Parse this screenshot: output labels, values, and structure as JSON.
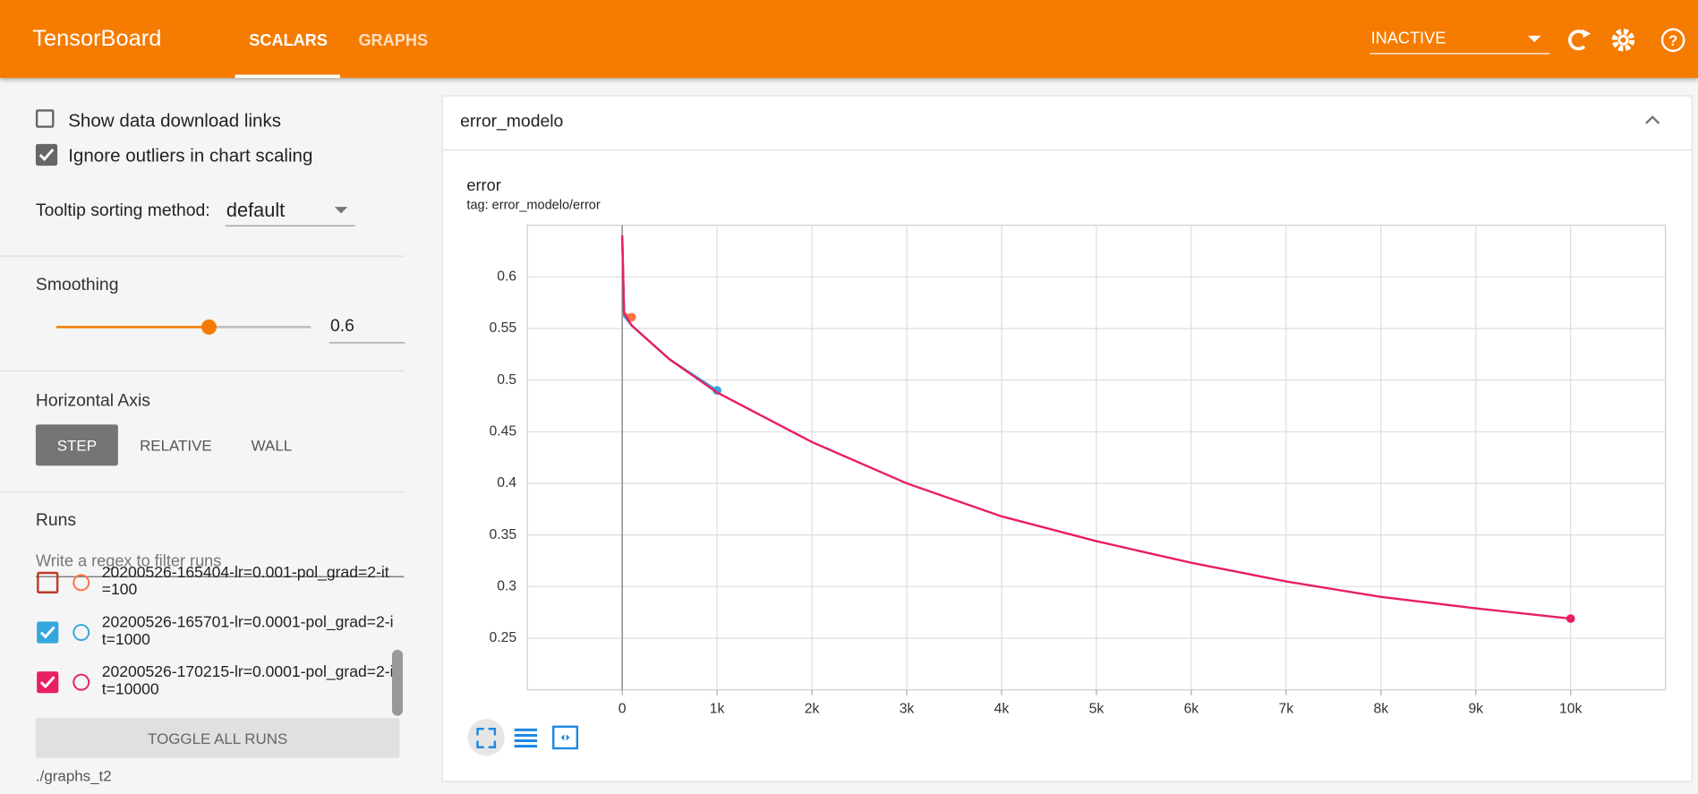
{
  "header": {
    "title": "TensorBoard",
    "tabs": [
      "SCALARS",
      "GRAPHS"
    ],
    "status": "INACTIVE"
  },
  "sidebar": {
    "show_download": "Show data download links",
    "ignore_outliers": "Ignore outliers in chart scaling",
    "tooltip_label": "Tooltip sorting method:",
    "tooltip_value": "default",
    "smoothing_label": "Smoothing",
    "smoothing": 0.6,
    "axis_label": "Horizontal Axis",
    "axis_options": [
      "STEP",
      "RELATIVE",
      "WALL"
    ],
    "runs_label": "Runs",
    "filter_placeholder": "Write a regex to filter runs",
    "toggle": "TOGGLE ALL RUNS",
    "logdir": "./graphs_t2"
  },
  "card": {
    "title": "error_modelo"
  },
  "chart_data": {
    "type": "line",
    "title": "error",
    "subtitle": "tag: error_modelo/error",
    "xlim": [
      -1000,
      11000
    ],
    "ylim": [
      0.2,
      0.65
    ],
    "xticks": [
      0,
      {
        "value": 1000,
        "label": "1k"
      },
      {
        "value": 2000,
        "label": "2k"
      },
      {
        "value": 3000,
        "label": "3k"
      },
      {
        "value": 4000,
        "label": "4k"
      },
      {
        "value": 5000,
        "label": "5k"
      },
      {
        "value": 6000,
        "label": "6k"
      },
      {
        "value": 7000,
        "label": "7k"
      },
      {
        "value": 8000,
        "label": "8k"
      },
      {
        "value": 9000,
        "label": "9k"
      },
      {
        "value": 10000,
        "label": "10k"
      }
    ],
    "yticks": [
      0.25,
      0.3,
      0.35,
      0.4,
      0.45,
      0.5,
      0.55,
      0.6
    ],
    "grid": true,
    "series": [
      {
        "name": "20200526-165404-lr=0.001-pol_grad=2-it=100",
        "color": "#ff7043",
        "checked": false,
        "x": [
          0,
          20,
          100
        ],
        "values": [
          0.64,
          0.565,
          0.561
        ]
      },
      {
        "name": "20200526-165701-lr=0.0001-pol_grad=2-it=1000",
        "color": "#33a7dd",
        "checked": true,
        "x": [
          0,
          20,
          100,
          500,
          1000
        ],
        "values": [
          0.64,
          0.562,
          0.553,
          0.52,
          0.49
        ]
      },
      {
        "name": "20200526-170215-lr=0.0001-pol_grad=2-it=10000",
        "color": "#e91e63",
        "checked": true,
        "x": [
          0,
          20,
          100,
          500,
          1000,
          2000,
          3000,
          4000,
          5000,
          6000,
          7000,
          8000,
          9000,
          10000
        ],
        "values": [
          0.64,
          0.565,
          0.553,
          0.52,
          0.488,
          0.44,
          0.4,
          0.368,
          0.344,
          0.323,
          0.305,
          0.29,
          0.279,
          0.269
        ]
      }
    ]
  }
}
